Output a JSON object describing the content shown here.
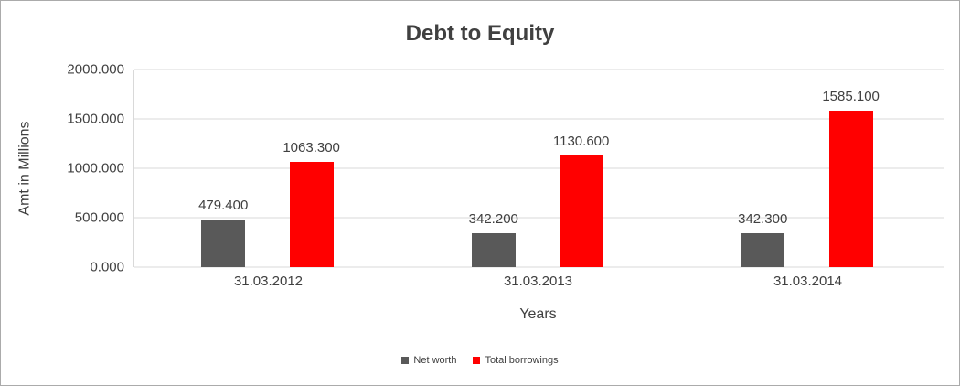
{
  "chart_data": {
    "type": "bar",
    "title": "Debt to Equity",
    "xlabel": "Years",
    "ylabel": "Amt in Millions",
    "categories": [
      "31.03.2012",
      "31.03.2013",
      "31.03.2014"
    ],
    "series": [
      {
        "name": "Net worth",
        "color": "#595959",
        "values": [
          479.4,
          342.2,
          342.3
        ],
        "labels": [
          "479.400",
          "342.200",
          "342.300"
        ]
      },
      {
        "name": "Total borrowings",
        "color": "#ff0000",
        "values": [
          1063.3,
          1130.6,
          1585.1
        ],
        "labels": [
          "1063.300",
          "1130.600",
          "1585.100"
        ]
      }
    ],
    "ylim": [
      0,
      2000
    ],
    "yticks": [
      0,
      500,
      1000,
      1500,
      2000
    ],
    "ytick_labels": [
      "0.000",
      "500.000",
      "1000.000",
      "1500.000",
      "2000.000"
    ],
    "grid": true,
    "legend_position": "bottom"
  }
}
